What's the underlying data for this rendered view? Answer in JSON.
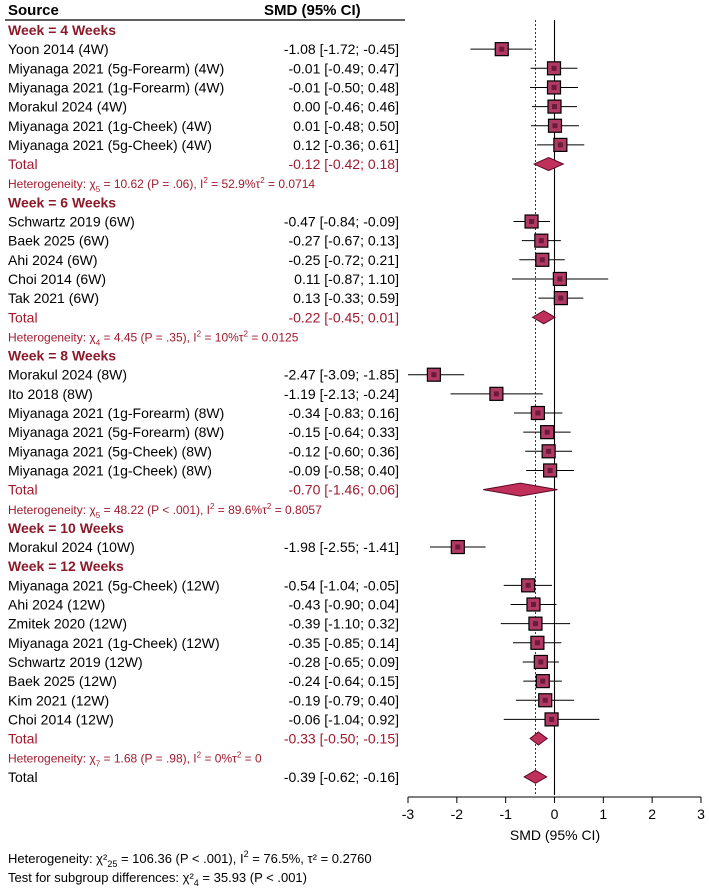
{
  "chart_data": {
    "type": "forest",
    "header_source": "Source",
    "header_effect": "SMD (95% CI)",
    "xlabel": "SMD (95% CI)",
    "xlim": [
      -3,
      3
    ],
    "xticks": [
      -3,
      -2,
      -1,
      0,
      1,
      2,
      3
    ],
    "null_line": 0,
    "overall_effect_line": -0.39,
    "colors": {
      "subgroup_red": "#a01a2e",
      "marker_fill": "#b03a63",
      "diamond_fill": "#c0305a"
    },
    "rows": [
      {
        "kind": "group",
        "label": "Week = 4 Weeks"
      },
      {
        "kind": "study",
        "label": "Yoon 2014 (4W)",
        "ci_text": "-1.08 [-1.72; -0.45]",
        "est": -1.08,
        "lo": -1.72,
        "hi": -0.45
      },
      {
        "kind": "study",
        "label": "Miyanaga 2021 (5g-Forearm) (4W)",
        "ci_text": "-0.01 [-0.49;  0.47]",
        "est": -0.01,
        "lo": -0.49,
        "hi": 0.47
      },
      {
        "kind": "study",
        "label": "Miyanaga 2021 (1g-Forearm) (4W)",
        "ci_text": "-0.01 [-0.50;  0.48]",
        "est": -0.01,
        "lo": -0.5,
        "hi": 0.48
      },
      {
        "kind": "study",
        "label": "Morakul 2024 (4W)",
        "ci_text": "0.00 [-0.46;  0.46]",
        "est": 0.0,
        "lo": -0.46,
        "hi": 0.46
      },
      {
        "kind": "study",
        "label": "Miyanaga 2021 (1g-Cheek) (4W)",
        "ci_text": "0.01 [-0.48;  0.50]",
        "est": 0.01,
        "lo": -0.48,
        "hi": 0.5
      },
      {
        "kind": "study",
        "label": "Miyanaga 2021 (5g-Cheek) (4W)",
        "ci_text": "0.12 [-0.36;  0.61]",
        "est": 0.12,
        "lo": -0.36,
        "hi": 0.61
      },
      {
        "kind": "total",
        "label": "Total",
        "ci_text": "-0.12 [-0.42;  0.18]",
        "est": -0.12,
        "lo": -0.42,
        "hi": 0.18
      },
      {
        "kind": "het",
        "prefix": "Heterogeneity: ",
        "chi_sym": "χ",
        "chi_sup": "2",
        "df": "5",
        "mid": " = 10.62 (P = .06), I",
        "i2_sup": "2",
        "tail": " = 52.9%τ",
        "tau_sup": "2",
        "tau_val": " = 0.0714"
      },
      {
        "kind": "group",
        "label": "Week = 6 Weeks"
      },
      {
        "kind": "study",
        "label": "Schwartz 2019 (6W)",
        "ci_text": "-0.47 [-0.84; -0.09]",
        "est": -0.47,
        "lo": -0.84,
        "hi": -0.09
      },
      {
        "kind": "study",
        "label": "Baek 2025 (6W)",
        "ci_text": "-0.27 [-0.67;  0.13]",
        "est": -0.27,
        "lo": -0.67,
        "hi": 0.13
      },
      {
        "kind": "study",
        "label": "Ahi 2024 (6W)",
        "ci_text": "-0.25 [-0.72;  0.21]",
        "est": -0.25,
        "lo": -0.72,
        "hi": 0.21
      },
      {
        "kind": "study",
        "label": "Choi 2014 (6W)",
        "ci_text": "0.11 [-0.87;  1.10]",
        "est": 0.11,
        "lo": -0.87,
        "hi": 1.1
      },
      {
        "kind": "study",
        "label": "Tak 2021 (6W)",
        "ci_text": "0.13 [-0.33;  0.59]",
        "est": 0.13,
        "lo": -0.33,
        "hi": 0.59
      },
      {
        "kind": "total",
        "label": "Total",
        "ci_text": "-0.22 [-0.45;  0.01]",
        "est": -0.22,
        "lo": -0.45,
        "hi": 0.01
      },
      {
        "kind": "het",
        "prefix": "Heterogeneity: ",
        "chi_sym": "χ",
        "chi_sup": "2",
        "df": "4",
        "mid": " = 4.45 (P = .35), I",
        "i2_sup": "2",
        "tail": " = 10%τ",
        "tau_sup": "2",
        "tau_val": " = 0.0125"
      },
      {
        "kind": "group",
        "label": "Week = 8 Weeks"
      },
      {
        "kind": "study",
        "label": "Morakul 2024 (8W)",
        "ci_text": "-2.47 [-3.09; -1.85]",
        "est": -2.47,
        "lo": -3.09,
        "hi": -1.85
      },
      {
        "kind": "study",
        "label": "Ito 2018 (8W)",
        "ci_text": "-1.19 [-2.13; -0.24]",
        "est": -1.19,
        "lo": -2.13,
        "hi": -0.24
      },
      {
        "kind": "study",
        "label": "Miyanaga 2021 (1g-Forearm) (8W)",
        "ci_text": "-0.34 [-0.83;  0.16]",
        "est": -0.34,
        "lo": -0.83,
        "hi": 0.16
      },
      {
        "kind": "study",
        "label": "Miyanaga 2021 (5g-Forearm) (8W)",
        "ci_text": "-0.15 [-0.64;  0.33]",
        "est": -0.15,
        "lo": -0.64,
        "hi": 0.33
      },
      {
        "kind": "study",
        "label": "Miyanaga 2021 (5g-Cheek) (8W)",
        "ci_text": "-0.12 [-0.60;  0.36]",
        "est": -0.12,
        "lo": -0.6,
        "hi": 0.36
      },
      {
        "kind": "study",
        "label": "Miyanaga 2021 (1g-Cheek) (8W)",
        "ci_text": "-0.09 [-0.58;  0.40]",
        "est": -0.09,
        "lo": -0.58,
        "hi": 0.4
      },
      {
        "kind": "total",
        "label": "Total",
        "ci_text": "-0.70 [-1.46;  0.06]",
        "est": -0.7,
        "lo": -1.46,
        "hi": 0.06
      },
      {
        "kind": "het",
        "prefix": "Heterogeneity: ",
        "chi_sym": "χ",
        "chi_sup": "2",
        "df": "5",
        "mid": " = 48.22 (P < .001), I",
        "i2_sup": "2",
        "tail": " = 89.6%τ",
        "tau_sup": "2",
        "tau_val": " = 0.8057"
      },
      {
        "kind": "group",
        "label": "Week = 10 Weeks"
      },
      {
        "kind": "study",
        "label": "Morakul 2024 (10W)",
        "ci_text": "-1.98 [-2.55; -1.41]",
        "est": -1.98,
        "lo": -2.55,
        "hi": -1.41
      },
      {
        "kind": "group",
        "label": "Week = 12 Weeks"
      },
      {
        "kind": "study",
        "label": "Miyanaga 2021 (5g-Cheek) (12W)",
        "ci_text": "-0.54 [-1.04; -0.05]",
        "est": -0.54,
        "lo": -1.04,
        "hi": -0.05
      },
      {
        "kind": "study",
        "label": "Ahi 2024 (12W)",
        "ci_text": "-0.43 [-0.90;  0.04]",
        "est": -0.43,
        "lo": -0.9,
        "hi": 0.04
      },
      {
        "kind": "study",
        "label": "Zmitek 2020 (12W)",
        "ci_text": "-0.39 [-1.10;  0.32]",
        "est": -0.39,
        "lo": -1.1,
        "hi": 0.32
      },
      {
        "kind": "study",
        "label": "Miyanaga 2021 (1g-Cheek) (12W)",
        "ci_text": "-0.35 [-0.85;  0.14]",
        "est": -0.35,
        "lo": -0.85,
        "hi": 0.14
      },
      {
        "kind": "study",
        "label": "Schwartz 2019 (12W)",
        "ci_text": "-0.28 [-0.65;  0.09]",
        "est": -0.28,
        "lo": -0.65,
        "hi": 0.09
      },
      {
        "kind": "study",
        "label": "Baek 2025 (12W)",
        "ci_text": "-0.24 [-0.64;  0.15]",
        "est": -0.24,
        "lo": -0.64,
        "hi": 0.15
      },
      {
        "kind": "study",
        "label": "Kim 2021 (12W)",
        "ci_text": "-0.19 [-0.79;  0.40]",
        "est": -0.19,
        "lo": -0.79,
        "hi": 0.4
      },
      {
        "kind": "study",
        "label": "Choi 2014 (12W)",
        "ci_text": "-0.06 [-1.04;  0.92]",
        "est": -0.06,
        "lo": -1.04,
        "hi": 0.92
      },
      {
        "kind": "total",
        "label": "Total",
        "ci_text": "-0.33 [-0.50; -0.15]",
        "est": -0.33,
        "lo": -0.5,
        "hi": -0.15
      },
      {
        "kind": "het",
        "prefix": "Heterogeneity: ",
        "chi_sym": "χ",
        "chi_sup": "2",
        "df": "7",
        "mid": " = 1.68 (P = .98), I",
        "i2_sup": "2",
        "tail": " = 0%τ",
        "tau_sup": "2",
        "tau_val": " = 0"
      },
      {
        "kind": "overall",
        "label": "Total",
        "ci_text": "-0.39 [-0.62; -0.16]",
        "est": -0.39,
        "lo": -0.62,
        "hi": -0.16
      }
    ],
    "overall_het": {
      "prefix": "Heterogeneity: ",
      "chi_sym": "χ²",
      "df": "25",
      "mid": " = 106.36 (P < .001), I",
      "i2_sup": "2",
      "tail": " = 76.5%, τ² = 0.2760"
    },
    "subgroup_test": {
      "prefix": "Test for subgroup differences: χ²",
      "df": "4",
      "tail": " = 35.93 (P < .001)"
    }
  }
}
